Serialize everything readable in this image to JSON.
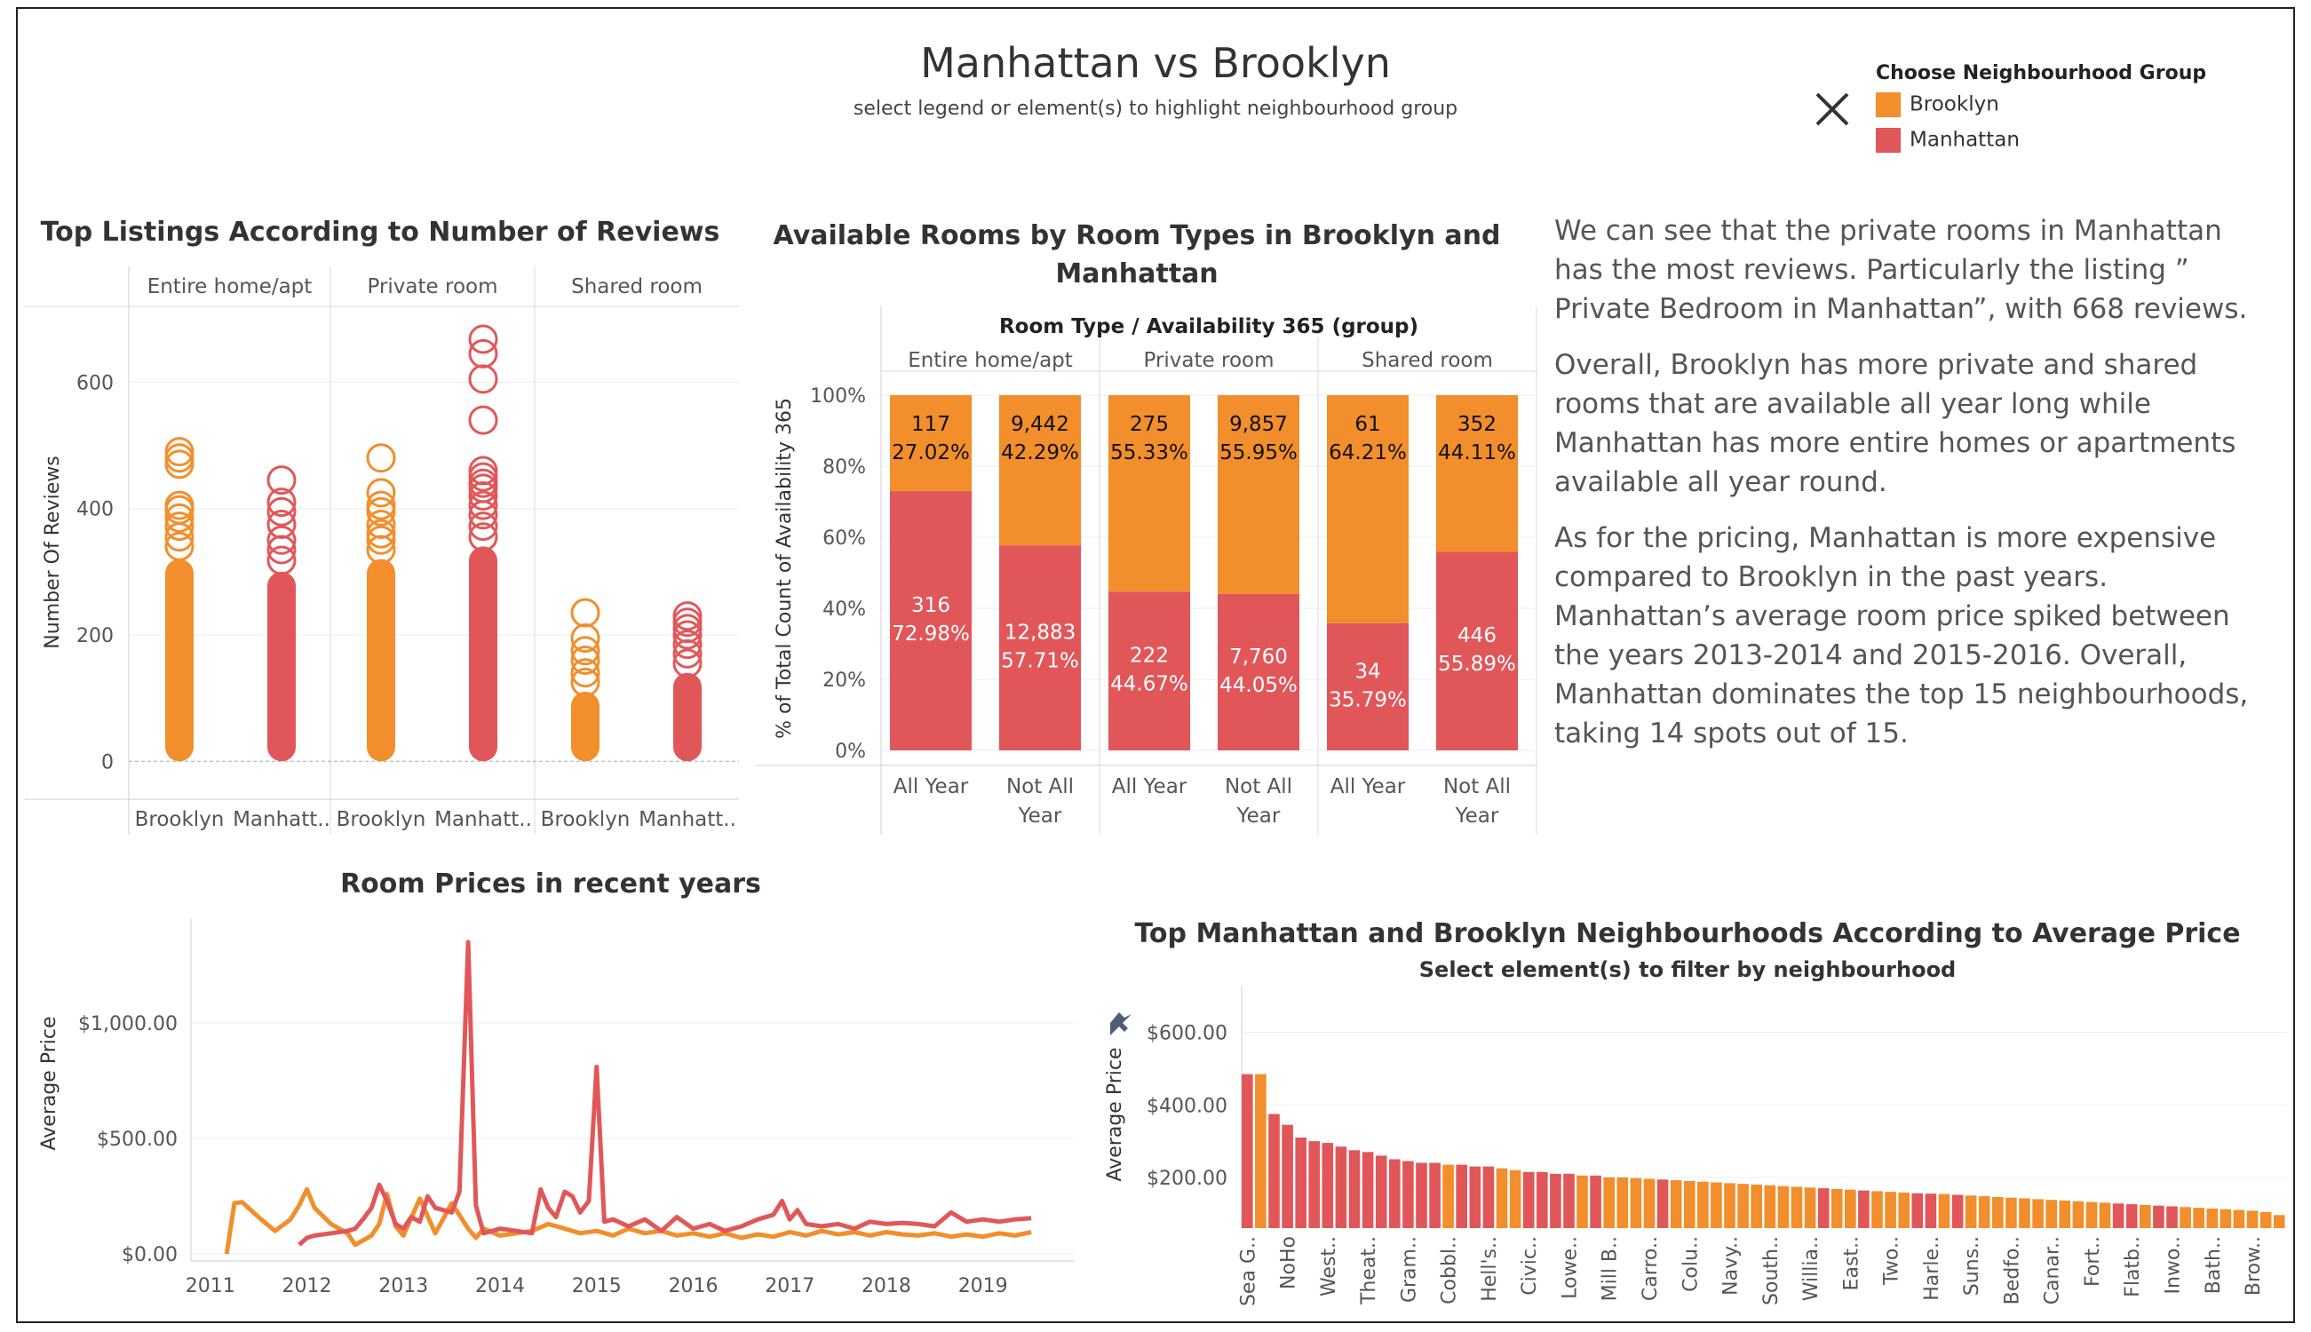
{
  "header": {
    "title": "Manhattan vs Brooklyn",
    "subtitle": "select legend or element(s) to highlight neighbourhood group"
  },
  "legend": {
    "title": "Choose Neighbourhood Group",
    "items": [
      {
        "label": "Brooklyn",
        "color": "#f28e2b"
      },
      {
        "label": "Manhattan",
        "color": "#e15759"
      }
    ],
    "close_icon": "close-icon"
  },
  "colors": {
    "brooklyn": "#f28e2b",
    "manhattan": "#e15759"
  },
  "commentary": {
    "paragraphs": [
      "We can see that the private rooms in Manhattan has the most reviews. Particularly the listing  ” Private Bedroom in Manhattan”, with 668 reviews.",
      "Overall, Brooklyn has more private and shared rooms that are available all year long while Manhattan has more entire homes or apartments available all year round.",
      "As for the pricing, Manhattan is more expensive compared to Brooklyn in the past years. Manhattan’s average room price spiked between the years 2013-2014 and 2015-2016. Overall, Manhattan dominates the top 15 neighbourhoods, taking 14 spots out of 15."
    ]
  },
  "chart_data": [
    {
      "id": "reviews",
      "type": "scatter",
      "title": "Top Listings According to Number of Reviews",
      "ylabel": "Number Of Reviews",
      "ylim": [
        -60,
        720
      ],
      "yticks": [
        0,
        200,
        400,
        600
      ],
      "panels": [
        "Entire home/apt",
        "Private room",
        "Shared room"
      ],
      "panel_x_labels": [
        "Brooklyn",
        "Manhatt.."
      ],
      "series": [
        {
          "panel": 0,
          "group": "Brooklyn",
          "dense_max": 320,
          "outliers": [
            340,
            355,
            372,
            385,
            398,
            405,
            470,
            480,
            490
          ]
        },
        {
          "panel": 0,
          "group": "Manhattan",
          "dense_max": 300,
          "outliers": [
            318,
            335,
            350,
            375,
            395,
            410,
            445
          ]
        },
        {
          "panel": 1,
          "group": "Brooklyn",
          "dense_max": 320,
          "outliers": [
            335,
            350,
            360,
            375,
            395,
            405,
            425,
            480
          ]
        },
        {
          "panel": 1,
          "group": "Manhattan",
          "dense_max": 340,
          "outliers": [
            355,
            372,
            390,
            405,
            420,
            432,
            440,
            450,
            460,
            540,
            605,
            645,
            668
          ]
        },
        {
          "panel": 2,
          "group": "Brooklyn",
          "dense_max": 110,
          "outliers": [
            125,
            140,
            160,
            175,
            195,
            235
          ]
        },
        {
          "panel": 2,
          "group": "Manhattan",
          "dense_max": 140,
          "outliers": [
            155,
            170,
            185,
            200,
            210,
            220,
            230
          ]
        }
      ]
    },
    {
      "id": "availability",
      "type": "bar",
      "title": "Available Rooms by Room Types in Brooklyn and Manhattan",
      "header_label": "Room Type  /  Availability 365 (group)",
      "ylabel": "% of Total Count of Availability 365",
      "yticks": [
        "0%",
        "20%",
        "40%",
        "60%",
        "80%",
        "100%"
      ],
      "panels": [
        "Entire home/apt",
        "Private room",
        "Shared room"
      ],
      "categories": [
        "All Year",
        "Not All Year"
      ],
      "bars": [
        {
          "panel": 0,
          "category": "All Year",
          "brooklyn_count": "117",
          "brooklyn_pct": 27.02,
          "brooklyn_pct_label": "27.02%",
          "manhattan_count": "316",
          "manhattan_pct": 72.98,
          "manhattan_pct_label": "72.98%"
        },
        {
          "panel": 0,
          "category": "Not All Year",
          "brooklyn_count": "9,442",
          "brooklyn_pct": 42.29,
          "brooklyn_pct_label": "42.29%",
          "manhattan_count": "12,883",
          "manhattan_pct": 57.71,
          "manhattan_pct_label": "57.71%"
        },
        {
          "panel": 1,
          "category": "All Year",
          "brooklyn_count": "275",
          "brooklyn_pct": 55.33,
          "brooklyn_pct_label": "55.33%",
          "manhattan_count": "222",
          "manhattan_pct": 44.67,
          "manhattan_pct_label": "44.67%"
        },
        {
          "panel": 1,
          "category": "Not All Year",
          "brooklyn_count": "9,857",
          "brooklyn_pct": 55.95,
          "brooklyn_pct_label": "55.95%",
          "manhattan_count": "7,760",
          "manhattan_pct": 44.05,
          "manhattan_pct_label": "44.05%"
        },
        {
          "panel": 2,
          "category": "All Year",
          "brooklyn_count": "61",
          "brooklyn_pct": 64.21,
          "brooklyn_pct_label": "64.21%",
          "manhattan_count": "34",
          "manhattan_pct": 35.79,
          "manhattan_pct_label": "35.79%"
        },
        {
          "panel": 2,
          "category": "Not All Year",
          "brooklyn_count": "352",
          "brooklyn_pct": 44.11,
          "brooklyn_pct_label": "44.11%",
          "manhattan_count": "446",
          "manhattan_pct": 55.89,
          "manhattan_pct_label": "55.89%"
        }
      ]
    },
    {
      "id": "prices",
      "type": "line",
      "title": "Room Prices in recent years",
      "ylabel": "Average Price",
      "ylim": [
        -30,
        1450
      ],
      "yticks": [
        0,
        500,
        1000
      ],
      "ytick_labels": [
        "$0.00",
        "$500.00",
        "$1,000.00"
      ],
      "xlim": [
        2010.8,
        2019.95
      ],
      "xticks": [
        2011,
        2012,
        2013,
        2014,
        2015,
        2016,
        2017,
        2018,
        2019
      ],
      "series": [
        {
          "name": "Brooklyn",
          "x": [
            2011.17,
            2011.25,
            2011.33,
            2011.5,
            2011.67,
            2011.83,
            2011.92,
            2012.0,
            2012.08,
            2012.25,
            2012.42,
            2012.5,
            2012.67,
            2012.75,
            2012.83,
            2012.92,
            2013.0,
            2013.17,
            2013.33,
            2013.5,
            2013.67,
            2013.75,
            2013.83,
            2014.0,
            2014.17,
            2014.33,
            2014.5,
            2014.67,
            2014.83,
            2015.0,
            2015.17,
            2015.33,
            2015.5,
            2015.67,
            2015.83,
            2016.0,
            2016.17,
            2016.33,
            2016.5,
            2016.67,
            2016.83,
            2017.0,
            2017.17,
            2017.33,
            2017.5,
            2017.67,
            2017.83,
            2018.0,
            2018.17,
            2018.33,
            2018.5,
            2018.67,
            2018.83,
            2019.0,
            2019.17,
            2019.33,
            2019.5
          ],
          "y": [
            0,
            220,
            225,
            160,
            100,
            150,
            210,
            280,
            200,
            130,
            90,
            40,
            80,
            130,
            260,
            120,
            80,
            240,
            90,
            220,
            110,
            70,
            110,
            80,
            90,
            100,
            130,
            110,
            90,
            100,
            80,
            110,
            90,
            100,
            80,
            90,
            75,
            90,
            70,
            85,
            75,
            95,
            80,
            100,
            85,
            95,
            80,
            95,
            85,
            80,
            90,
            75,
            85,
            75,
            90,
            80,
            95
          ]
        },
        {
          "name": "Manhattan",
          "x": [
            2011.92,
            2012.0,
            2012.08,
            2012.25,
            2012.42,
            2012.5,
            2012.58,
            2012.67,
            2012.75,
            2012.83,
            2012.92,
            2013.0,
            2013.08,
            2013.17,
            2013.25,
            2013.33,
            2013.5,
            2013.58,
            2013.67,
            2013.75,
            2013.83,
            2013.92,
            2014.0,
            2014.17,
            2014.33,
            2014.42,
            2014.5,
            2014.58,
            2014.67,
            2014.75,
            2014.83,
            2014.92,
            2015.0,
            2015.08,
            2015.17,
            2015.33,
            2015.5,
            2015.67,
            2015.83,
            2016.0,
            2016.17,
            2016.33,
            2016.5,
            2016.67,
            2016.83,
            2016.92,
            2017.0,
            2017.08,
            2017.17,
            2017.33,
            2017.5,
            2017.67,
            2017.83,
            2018.0,
            2018.17,
            2018.33,
            2018.5,
            2018.67,
            2018.83,
            2019.0,
            2019.17,
            2019.33,
            2019.5
          ],
          "y": [
            40,
            70,
            80,
            90,
            100,
            110,
            150,
            200,
            300,
            230,
            130,
            110,
            160,
            140,
            250,
            200,
            180,
            270,
            1350,
            210,
            90,
            100,
            110,
            100,
            90,
            280,
            200,
            160,
            270,
            250,
            180,
            230,
            810,
            140,
            150,
            120,
            150,
            100,
            160,
            110,
            130,
            100,
            120,
            150,
            170,
            230,
            150,
            190,
            130,
            120,
            130,
            110,
            140,
            130,
            135,
            130,
            120,
            180,
            140,
            150,
            140,
            150,
            155
          ]
        }
      ]
    },
    {
      "id": "neighbourhoods",
      "type": "bar",
      "title": "Top Manhattan and Brooklyn Neighbourhoods According to Average Price",
      "subtitle": "Select element(s) to filter by neighbourhood",
      "ylabel": "Average Price",
      "ylim": [
        60,
        680
      ],
      "yticks": [
        200,
        400,
        600
      ],
      "ytick_labels": [
        "$200.00",
        "$400.00",
        "$600.00"
      ],
      "pin_icon": "pin-icon",
      "bars": [
        {
          "label": "Sea G..",
          "value": 485,
          "group": "Manhattan"
        },
        {
          "label": "",
          "value": 485,
          "group": "Brooklyn"
        },
        {
          "label": "",
          "value": 375,
          "group": "Manhattan"
        },
        {
          "label": "NoHo",
          "value": 345,
          "group": "Manhattan"
        },
        {
          "label": "",
          "value": 310,
          "group": "Manhattan"
        },
        {
          "label": "",
          "value": 300,
          "group": "Manhattan"
        },
        {
          "label": "West..",
          "value": 295,
          "group": "Manhattan"
        },
        {
          "label": "",
          "value": 285,
          "group": "Manhattan"
        },
        {
          "label": "",
          "value": 275,
          "group": "Manhattan"
        },
        {
          "label": "Theat..",
          "value": 270,
          "group": "Manhattan"
        },
        {
          "label": "",
          "value": 260,
          "group": "Manhattan"
        },
        {
          "label": "",
          "value": 250,
          "group": "Manhattan"
        },
        {
          "label": "Gram..",
          "value": 245,
          "group": "Manhattan"
        },
        {
          "label": "",
          "value": 240,
          "group": "Manhattan"
        },
        {
          "label": "",
          "value": 240,
          "group": "Manhattan"
        },
        {
          "label": "Cobbl..",
          "value": 235,
          "group": "Brooklyn"
        },
        {
          "label": "",
          "value": 235,
          "group": "Manhattan"
        },
        {
          "label": "",
          "value": 230,
          "group": "Manhattan"
        },
        {
          "label": "Hell's..",
          "value": 230,
          "group": "Manhattan"
        },
        {
          "label": "",
          "value": 225,
          "group": "Brooklyn"
        },
        {
          "label": "",
          "value": 220,
          "group": "Brooklyn"
        },
        {
          "label": "Civic..",
          "value": 215,
          "group": "Manhattan"
        },
        {
          "label": "",
          "value": 215,
          "group": "Manhattan"
        },
        {
          "label": "",
          "value": 210,
          "group": "Manhattan"
        },
        {
          "label": "Lowe..",
          "value": 210,
          "group": "Manhattan"
        },
        {
          "label": "",
          "value": 205,
          "group": "Brooklyn"
        },
        {
          "label": "",
          "value": 205,
          "group": "Manhattan"
        },
        {
          "label": "Mill B..",
          "value": 200,
          "group": "Brooklyn"
        },
        {
          "label": "",
          "value": 200,
          "group": "Brooklyn"
        },
        {
          "label": "",
          "value": 198,
          "group": "Brooklyn"
        },
        {
          "label": "Carro..",
          "value": 196,
          "group": "Brooklyn"
        },
        {
          "label": "",
          "value": 194,
          "group": "Manhattan"
        },
        {
          "label": "",
          "value": 192,
          "group": "Brooklyn"
        },
        {
          "label": "Colu..",
          "value": 190,
          "group": "Brooklyn"
        },
        {
          "label": "",
          "value": 188,
          "group": "Brooklyn"
        },
        {
          "label": "",
          "value": 186,
          "group": "Brooklyn"
        },
        {
          "label": "Navy..",
          "value": 184,
          "group": "Brooklyn"
        },
        {
          "label": "",
          "value": 182,
          "group": "Brooklyn"
        },
        {
          "label": "",
          "value": 180,
          "group": "Brooklyn"
        },
        {
          "label": "South..",
          "value": 178,
          "group": "Brooklyn"
        },
        {
          "label": "",
          "value": 176,
          "group": "Brooklyn"
        },
        {
          "label": "",
          "value": 174,
          "group": "Brooklyn"
        },
        {
          "label": "Willia..",
          "value": 172,
          "group": "Brooklyn"
        },
        {
          "label": "",
          "value": 170,
          "group": "Manhattan"
        },
        {
          "label": "",
          "value": 168,
          "group": "Brooklyn"
        },
        {
          "label": "East..",
          "value": 166,
          "group": "Brooklyn"
        },
        {
          "label": "",
          "value": 164,
          "group": "Manhattan"
        },
        {
          "label": "",
          "value": 162,
          "group": "Brooklyn"
        },
        {
          "label": "Two..",
          "value": 160,
          "group": "Brooklyn"
        },
        {
          "label": "",
          "value": 158,
          "group": "Brooklyn"
        },
        {
          "label": "",
          "value": 156,
          "group": "Manhattan"
        },
        {
          "label": "Harle..",
          "value": 155,
          "group": "Manhattan"
        },
        {
          "label": "",
          "value": 154,
          "group": "Brooklyn"
        },
        {
          "label": "",
          "value": 152,
          "group": "Manhattan"
        },
        {
          "label": "Suns..",
          "value": 150,
          "group": "Brooklyn"
        },
        {
          "label": "",
          "value": 148,
          "group": "Brooklyn"
        },
        {
          "label": "",
          "value": 146,
          "group": "Brooklyn"
        },
        {
          "label": "Bedfo..",
          "value": 144,
          "group": "Brooklyn"
        },
        {
          "label": "",
          "value": 142,
          "group": "Brooklyn"
        },
        {
          "label": "",
          "value": 140,
          "group": "Brooklyn"
        },
        {
          "label": "Canar..",
          "value": 138,
          "group": "Brooklyn"
        },
        {
          "label": "",
          "value": 136,
          "group": "Brooklyn"
        },
        {
          "label": "",
          "value": 134,
          "group": "Brooklyn"
        },
        {
          "label": "Fort..",
          "value": 132,
          "group": "Brooklyn"
        },
        {
          "label": "",
          "value": 130,
          "group": "Brooklyn"
        },
        {
          "label": "",
          "value": 128,
          "group": "Manhattan"
        },
        {
          "label": "Flatb..",
          "value": 126,
          "group": "Manhattan"
        },
        {
          "label": "",
          "value": 124,
          "group": "Brooklyn"
        },
        {
          "label": "",
          "value": 122,
          "group": "Manhattan"
        },
        {
          "label": "Inwo..",
          "value": 120,
          "group": "Manhattan"
        },
        {
          "label": "",
          "value": 118,
          "group": "Brooklyn"
        },
        {
          "label": "",
          "value": 116,
          "group": "Brooklyn"
        },
        {
          "label": "Bath..",
          "value": 114,
          "group": "Brooklyn"
        },
        {
          "label": "",
          "value": 112,
          "group": "Brooklyn"
        },
        {
          "label": "",
          "value": 110,
          "group": "Brooklyn"
        },
        {
          "label": "Brow..",
          "value": 108,
          "group": "Brooklyn"
        },
        {
          "label": "",
          "value": 104,
          "group": "Brooklyn"
        },
        {
          "label": "",
          "value": 96,
          "group": "Brooklyn"
        }
      ]
    }
  ]
}
